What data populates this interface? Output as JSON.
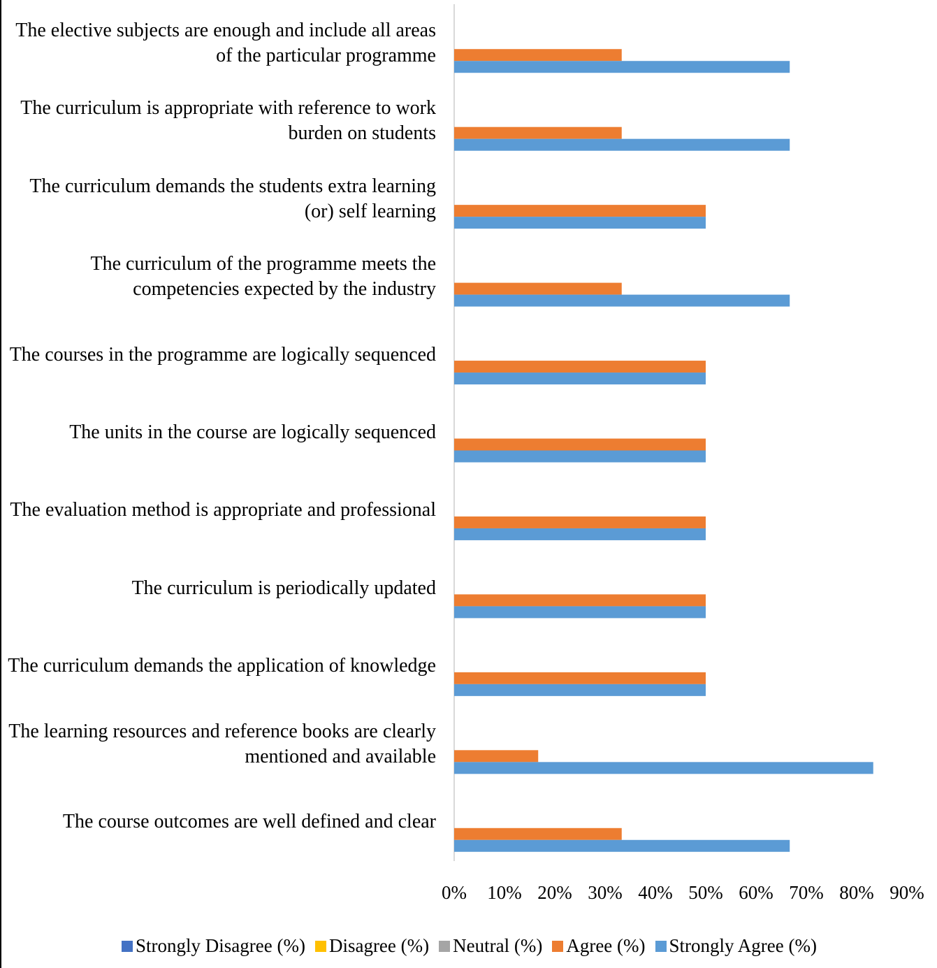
{
  "chart_data": {
    "type": "hbar",
    "categories": [
      "The elective subjects are enough and include all areas of the particular programme",
      "The curriculum is appropriate with reference to work burden on students",
      "The curriculum demands the students extra learning (or) self learning",
      "The curriculum of the programme meets the competencies expected by the industry",
      "The courses in the programme are logically sequenced",
      "The units in the course are logically sequenced",
      "The evaluation method is appropriate and professional",
      "The curriculum is periodically updated",
      "The curriculum demands the application of knowledge",
      "The learning resources and reference books are clearly mentioned and available",
      "The course outcomes are well defined and clear"
    ],
    "series": [
      {
        "name": "Strongly Disagree (%)",
        "color": "#4472c4",
        "values": [
          0,
          0,
          0,
          0,
          0,
          0,
          0,
          0,
          0,
          0,
          0
        ]
      },
      {
        "name": "Disagree (%)",
        "color": "#ffc000",
        "values": [
          0,
          0,
          0,
          0,
          0,
          0,
          0,
          0,
          0,
          0,
          0
        ]
      },
      {
        "name": "Neutral (%)",
        "color": "#a5a5a5",
        "values": [
          0,
          0,
          0,
          0,
          0,
          0,
          0,
          0,
          0,
          0,
          0
        ]
      },
      {
        "name": "Agree (%)",
        "color": "#ed7d31",
        "values": [
          33.3,
          33.3,
          50,
          33.3,
          50,
          50,
          50,
          50,
          50,
          16.7,
          33.3
        ]
      },
      {
        "name": "Strongly Agree (%)",
        "color": "#5b9bd5",
        "values": [
          66.7,
          66.7,
          50,
          66.7,
          50,
          50,
          50,
          50,
          50,
          83.3,
          66.7
        ]
      }
    ],
    "xlim": [
      0,
      90
    ],
    "xticks": [
      {
        "value": 0,
        "label": "0%"
      },
      {
        "value": 10,
        "label": "10%"
      },
      {
        "value": 20,
        "label": "20%"
      },
      {
        "value": 30,
        "label": "30%"
      },
      {
        "value": 40,
        "label": "40%"
      },
      {
        "value": 50,
        "label": "50%"
      },
      {
        "value": 60,
        "label": "60%"
      },
      {
        "value": 70,
        "label": "70%"
      },
      {
        "value": 80,
        "label": "80%"
      },
      {
        "value": 90,
        "label": "90%"
      }
    ],
    "legend": "bottom"
  }
}
